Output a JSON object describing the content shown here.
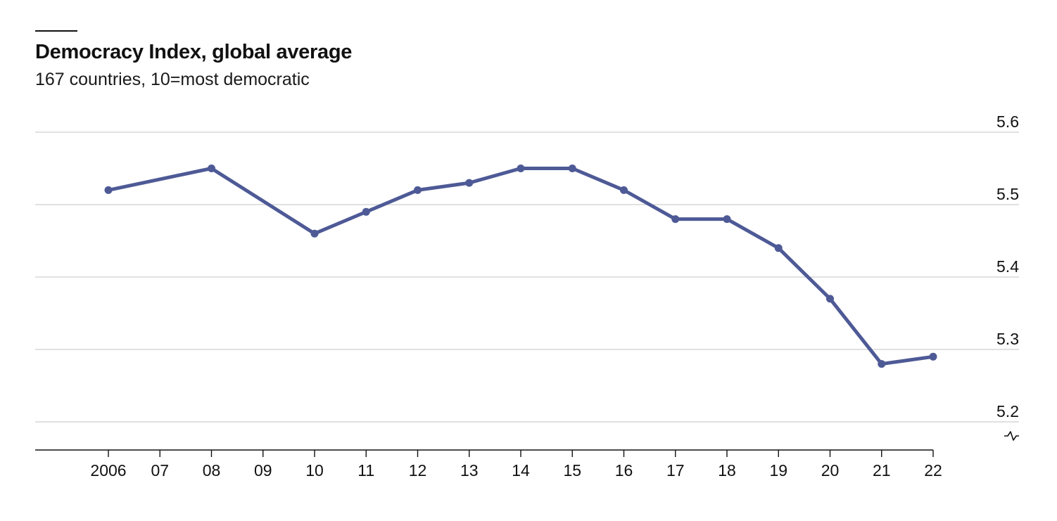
{
  "chart_data": {
    "type": "line",
    "title": "Democracy Index, global average",
    "subtitle": "167 countries, 10=most democratic",
    "xlabel": "",
    "ylabel": "",
    "x": [
      2006,
      2007,
      2008,
      2009,
      2010,
      2011,
      2012,
      2013,
      2014,
      2015,
      2016,
      2017,
      2018,
      2019,
      2020,
      2021,
      2022
    ],
    "x_tick_labels": [
      "2006",
      "07",
      "08",
      "09",
      "10",
      "11",
      "12",
      "13",
      "14",
      "15",
      "16",
      "17",
      "18",
      "19",
      "20",
      "21",
      "22"
    ],
    "series": [
      {
        "x": [
          2006,
          2008,
          2010,
          2011,
          2012,
          2013,
          2014,
          2015,
          2016,
          2017,
          2018,
          2019,
          2020,
          2021,
          2022
        ],
        "values": [
          5.52,
          5.55,
          5.46,
          5.49,
          5.52,
          5.53,
          5.55,
          5.55,
          5.52,
          5.48,
          5.48,
          5.44,
          5.37,
          5.28,
          5.29
        ],
        "color": "#4e5a96"
      }
    ],
    "y_ticks": [
      5.2,
      5.3,
      5.4,
      5.5,
      5.6
    ],
    "y_tick_labels": [
      "5.2",
      "5.3",
      "5.4",
      "5.5",
      "5.6"
    ],
    "ylim": [
      5.2,
      5.6
    ],
    "y_axis_side": "right",
    "y_axis_break": true,
    "grid": true,
    "legend": "none"
  }
}
